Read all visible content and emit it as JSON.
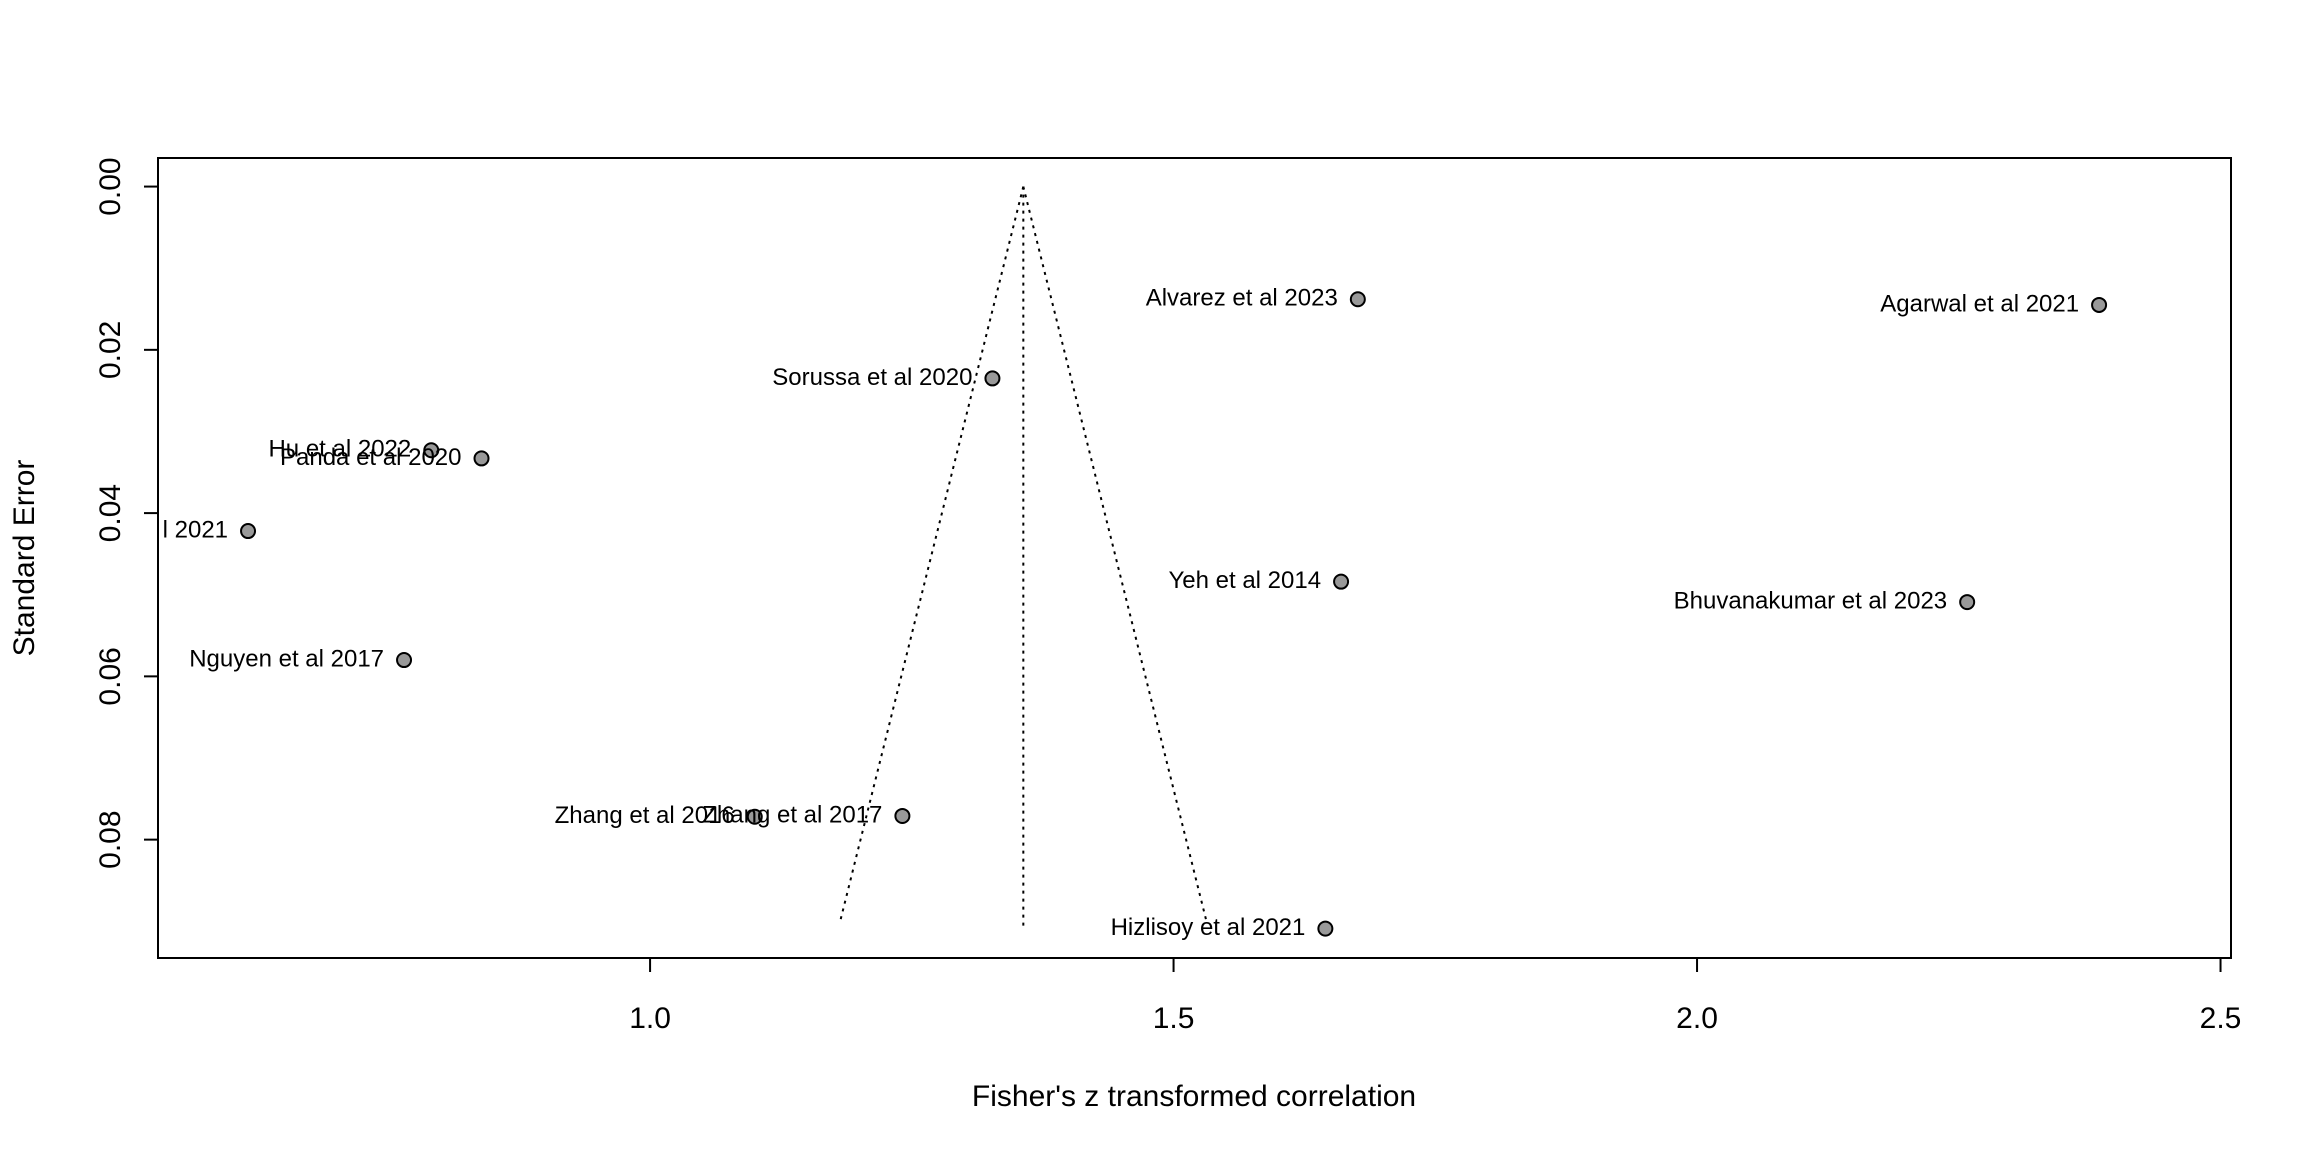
{
  "chart_data": {
    "type": "scatter",
    "title": "",
    "xlabel": "Fisher's z transformed correlation",
    "ylabel": "Standard Error",
    "xlim": [
      0.53,
      2.51
    ],
    "ylim": [
      0.0945,
      -0.0035
    ],
    "y_reversed": true,
    "x_ticks": [
      1.0,
      1.5,
      2.0,
      2.5
    ],
    "x_tick_labels": [
      "1.0",
      "1.5",
      "2.0",
      "2.5"
    ],
    "y_ticks": [
      0.0,
      0.02,
      0.04,
      0.06,
      0.08
    ],
    "y_tick_labels": [
      "0.00",
      "0.02",
      "0.04",
      "0.06",
      "0.08"
    ],
    "grid": false,
    "legend": "none",
    "point_fill": "#999999",
    "point_stroke": "#000000",
    "funnel": {
      "center": 1.3565,
      "center_line_y": [
        0.0,
        0.0907
      ],
      "left_bound": {
        "x": [
          1.3565,
          1.181
        ],
        "y": [
          0.0,
          0.0903
        ]
      },
      "right_bound": {
        "x": [
          1.3565,
          1.532
        ],
        "y": [
          0.0,
          0.0903
        ]
      }
    },
    "points": [
      {
        "label": "Alvarez et al 2023",
        "x": 1.676,
        "y": 0.0138
      },
      {
        "label": "Agarwal et al 2021",
        "x": 2.384,
        "y": 0.0145
      },
      {
        "label": "Sorussa et al 2020",
        "x": 1.327,
        "y": 0.0235
      },
      {
        "label": "Hu et al 2022",
        "x": 0.791,
        "y": 0.0323
      },
      {
        "label": "Panda et al 2020",
        "x": 0.839,
        "y": 0.0333
      },
      {
        "label": "l 2021",
        "x": 0.616,
        "y": 0.0422
      },
      {
        "label": "Yeh et al 2014",
        "x": 1.66,
        "y": 0.0484
      },
      {
        "label": "Bhuvanakumar et al 2023",
        "x": 2.258,
        "y": 0.0509
      },
      {
        "label": "Nguyen et al 2017",
        "x": 0.765,
        "y": 0.058
      },
      {
        "label": "Zhang et al 2016",
        "x": 1.1,
        "y": 0.0772
      },
      {
        "label": "Zhang et al 2017",
        "x": 1.241,
        "y": 0.0771
      },
      {
        "label": "Hizlisoy et al 2021",
        "x": 1.645,
        "y": 0.0909
      }
    ]
  }
}
